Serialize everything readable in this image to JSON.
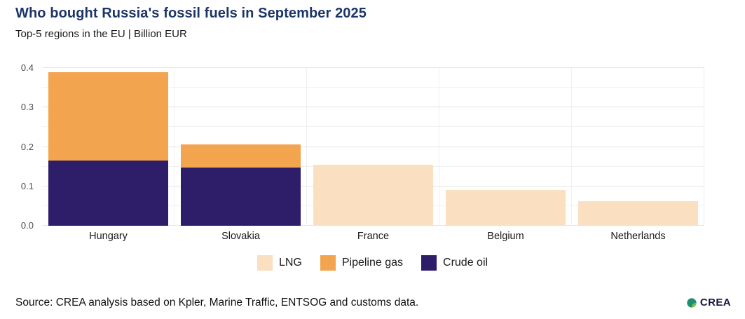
{
  "title": "Who bought Russia's fossil fuels in September 2025",
  "subtitle": "Top-5 regions in the EU | Billion EUR",
  "source": "Source: CREA analysis based on Kpler, Marine Traffic, ENTSOG and customs data.",
  "logo": {
    "text": "CREA"
  },
  "colors": {
    "title": "#1c3569",
    "lng": "#FADFC1",
    "pipeline_gas": "#F2A44F",
    "crude_oil": "#2E1D69",
    "grid_major": "#e4e4e4",
    "grid_minor": "#f2f2f2",
    "logo_leaf_dark": "#1e8f6e",
    "logo_leaf_light": "#7cc243"
  },
  "chart_data": {
    "type": "bar",
    "stacked": true,
    "title": "Who bought Russia's fossil fuels in September 2025",
    "subtitle": "Top-5 regions in the EU | Billion EUR",
    "categories": [
      "Hungary",
      "Slovakia",
      "France",
      "Belgium",
      "Netherlands"
    ],
    "series": [
      {
        "name": "LNG",
        "color": "#FADFC1",
        "values": [
          0,
          0,
          0.155,
          0.091,
          0.062
        ]
      },
      {
        "name": "Pipeline gas",
        "color": "#F2A44F",
        "values": [
          0.225,
          0.06,
          0,
          0,
          0
        ]
      },
      {
        "name": "Crude oil",
        "color": "#2E1D69",
        "values": [
          0.165,
          0.147,
          0,
          0,
          0
        ]
      }
    ],
    "stack_order": [
      "Crude oil",
      "Pipeline gas",
      "LNG"
    ],
    "totals": {
      "Hungary": 0.39,
      "Slovakia": 0.207,
      "France": 0.155,
      "Belgium": 0.091,
      "Netherlands": 0.062
    },
    "yticks": [
      0,
      0.1,
      0.2,
      0.3,
      0.4
    ],
    "ylim": [
      0,
      0.4
    ],
    "xlabel": "",
    "ylabel": "",
    "grid": true,
    "legend_position": "bottom"
  }
}
